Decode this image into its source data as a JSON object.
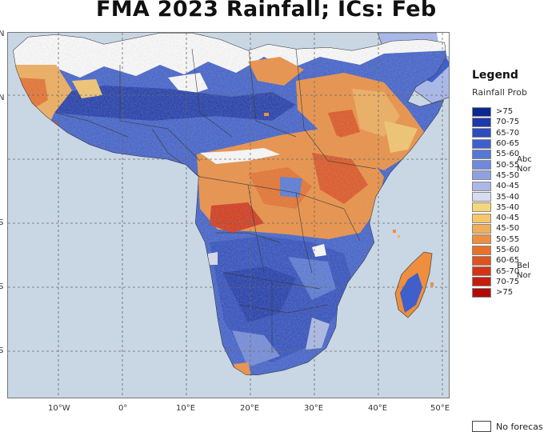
{
  "title": "FMA 2023 Rainfall; ICs: Feb",
  "map": {
    "ocean_color": "#c9d6e3",
    "lat_labels": [
      "N",
      "N",
      "",
      "S",
      "S",
      "S"
    ],
    "lon_labels": [
      "10°W",
      "0°",
      "10°E",
      "20°E",
      "30°E",
      "40°E",
      "50°E"
    ]
  },
  "legend": {
    "heading": "Legend",
    "subheading": "Rainfall Prob",
    "above_label": [
      "Abc",
      "Nor"
    ],
    "below_label": [
      "Bel",
      "Nor"
    ],
    "classes": [
      {
        "label": ">75",
        "color": "#0b2790"
      },
      {
        "label": "70-75",
        "color": "#1d39ab"
      },
      {
        "label": "65-70",
        "color": "#2d4cbf"
      },
      {
        "label": "60-65",
        "color": "#3e5fcc"
      },
      {
        "label": "55-60",
        "color": "#5577d6"
      },
      {
        "label": "50-55",
        "color": "#7089dc"
      },
      {
        "label": "45-50",
        "color": "#8ea1e2"
      },
      {
        "label": "40-45",
        "color": "#aab8e8"
      },
      {
        "label": "35-40",
        "color": "#d8dcef"
      },
      {
        "label": "35-40",
        "color": "#f4d77c"
      },
      {
        "label": "40-45",
        "color": "#f6c66b"
      },
      {
        "label": "45-50",
        "color": "#f2ad58"
      },
      {
        "label": "50-55",
        "color": "#ee8e3e"
      },
      {
        "label": "55-60",
        "color": "#e8702a"
      },
      {
        "label": "60-65",
        "color": "#e0521e"
      },
      {
        "label": "65-70",
        "color": "#d43414"
      },
      {
        "label": "70-75",
        "color": "#c61d0d"
      },
      {
        "label": ">75",
        "color": "#b10a06"
      }
    ],
    "no_forecast_label": "No forecas"
  }
}
